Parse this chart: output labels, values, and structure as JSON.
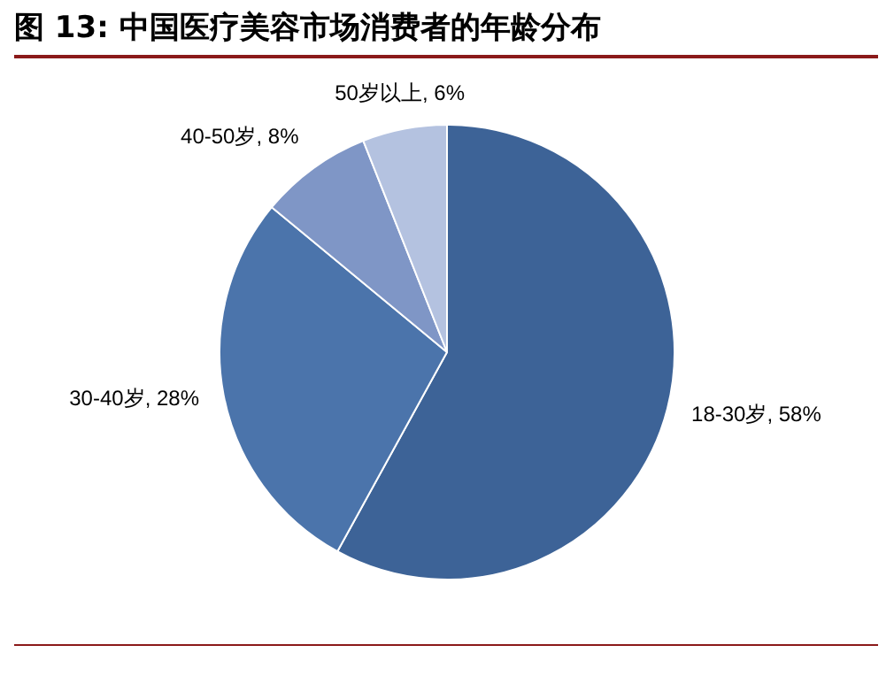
{
  "chart_data": {
    "type": "pie",
    "title": "图 13:  中国医疗美容市场消费者的年龄分布",
    "categories": [
      "18-30岁",
      "30-40岁",
      "40-50岁",
      "50岁以上"
    ],
    "values": [
      58,
      28,
      8,
      6
    ],
    "value_labels": [
      "58%",
      "28%",
      "8%",
      "6%"
    ],
    "colors": [
      "#3d6397",
      "#4b74ab",
      "#7f96c6",
      "#b4c2e0"
    ],
    "legend": false
  }
}
